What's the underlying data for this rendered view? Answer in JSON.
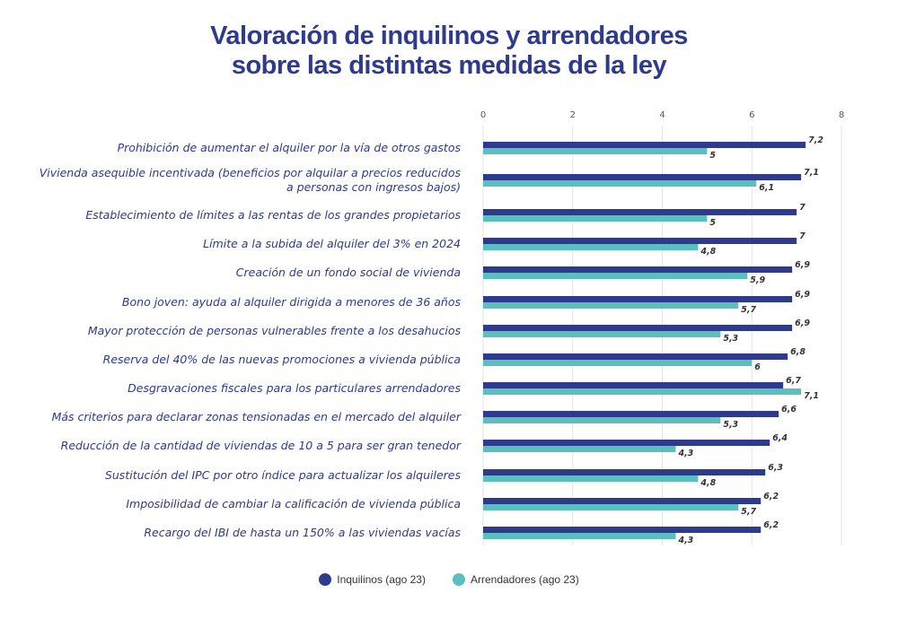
{
  "chart_data": {
    "type": "bar",
    "orientation": "horizontal",
    "title_lines": [
      "Valoración de inquilinos y arrendadores",
      "sobre las distintas medidas de la ley"
    ],
    "categories": [
      [
        "Prohibición de aumentar el alquiler por la vía de otros gastos"
      ],
      [
        "Vivienda asequible incentivada (beneficios por alquilar a precios reducidos",
        "a personas con ingresos bajos)"
      ],
      [
        "Establecimiento de límites a las rentas de los grandes propietarios"
      ],
      [
        "Límite a la subida del alquiler del 3% en 2024"
      ],
      [
        "Creación de un fondo social de vivienda"
      ],
      [
        "Bono joven: ayuda al alquiler dirigida a menores de 36 años"
      ],
      [
        "Mayor protección de personas vulnerables frente a los desahucios"
      ],
      [
        "Reserva del 40% de las nuevas promociones a vivienda pública"
      ],
      [
        "Desgravaciones fiscales para los particulares arrendadores"
      ],
      [
        "Más criterios para declarar zonas tensionadas en el mercado del alquiler"
      ],
      [
        "Reducción de la cantidad de viviendas de 10 a 5 para ser gran tenedor"
      ],
      [
        "Sustitución del IPC por otro índice para actualizar los alquileres"
      ],
      [
        "Imposibilidad de cambiar la calificación de vivienda pública"
      ],
      [
        "Recargo del IBI de hasta un 150% a las viviendas vacías"
      ]
    ],
    "series": [
      {
        "name": "Inquilinos (ago 23)",
        "color": "#2e3a8c",
        "values": [
          7.2,
          7.1,
          7,
          7,
          6.9,
          6.9,
          6.9,
          6.8,
          6.7,
          6.6,
          6.4,
          6.3,
          6.2,
          6.2
        ],
        "labels": [
          "7,2",
          "7,1",
          "7",
          "7",
          "6,9",
          "6,9",
          "6,9",
          "6,8",
          "6,7",
          "6,6",
          "6,4",
          "6,3",
          "6,2",
          "6,2"
        ]
      },
      {
        "name": "Arrendadores (ago 23)",
        "color": "#5bbfc0",
        "values": [
          5,
          6.1,
          5,
          4.8,
          5.9,
          5.7,
          5.3,
          6,
          7.1,
          5.3,
          4.3,
          4.8,
          5.7,
          4.3
        ],
        "labels": [
          "5",
          "6,1",
          "5",
          "4,8",
          "5,9",
          "5,7",
          "5,3",
          "6",
          "7,1",
          "5,3",
          "4,3",
          "4,8",
          "5,7",
          "4,3"
        ]
      }
    ],
    "xlim": [
      0,
      8
    ],
    "xticks": [
      "0",
      "2",
      "4",
      "6",
      "8"
    ],
    "grid": true,
    "legend_position": "bottom"
  }
}
